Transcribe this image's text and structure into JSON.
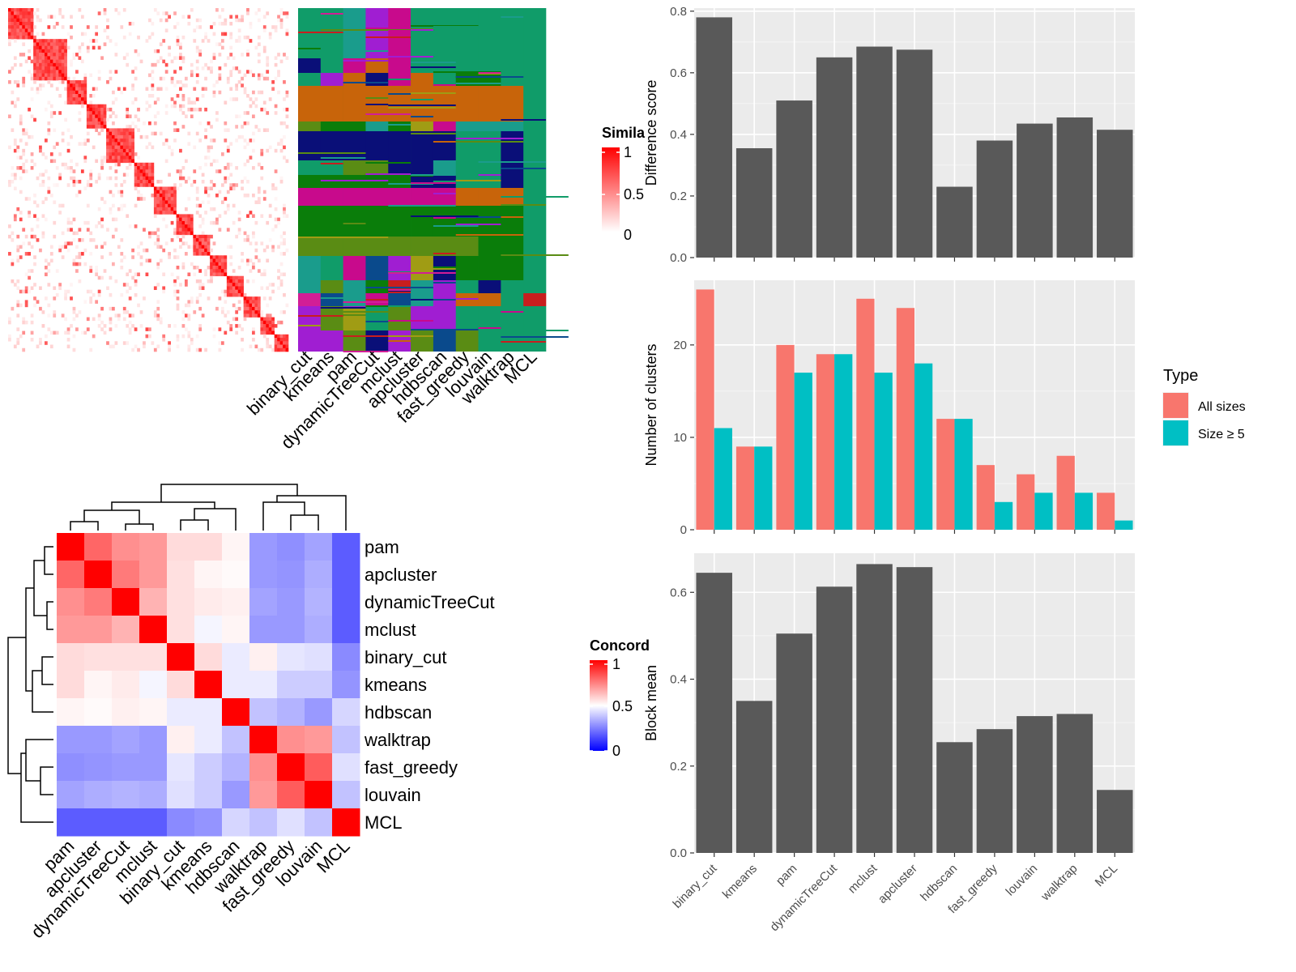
{
  "similarity_legend": {
    "title": "Simila",
    "ticks": [
      "1",
      "0.5",
      "0"
    ],
    "colors": [
      "#ffffff",
      "#ff0000"
    ]
  },
  "concordance_legend": {
    "title": "Concord",
    "ticks": [
      "1",
      "0.5",
      "0"
    ],
    "colors": [
      "#0000ff",
      "#ffffff",
      "#ff0000"
    ]
  },
  "membership_methods": [
    "binary_cut",
    "kmeans",
    "pam",
    "dynamicTreeCut",
    "mclust",
    "apcluster",
    "hdbscan",
    "fast_greedy",
    "louvain",
    "walktrap",
    "MCL"
  ],
  "membership_palette": [
    "#109c69",
    "#c8640a",
    "#0a0f78",
    "#c80a8c",
    "#0a7d0a",
    "#5a8c14",
    "#1a9c8c",
    "#a01ed2",
    "#0a4a8c",
    "#a09c14",
    "#c81e1e",
    "#d21e96"
  ],
  "chart_data": [
    {
      "type": "heatmap",
      "title": "",
      "row_labels": [
        "pam",
        "apcluster",
        "dynamicTreeCut",
        "mclust",
        "binary_cut",
        "kmeans",
        "hdbscan",
        "walktrap",
        "fast_greedy",
        "louvain",
        "MCL"
      ],
      "col_labels": [
        "pam",
        "apcluster",
        "dynamicTreeCut",
        "mclust",
        "binary_cut",
        "kmeans",
        "hdbscan",
        "walktrap",
        "fast_greedy",
        "louvain",
        "MCL"
      ],
      "values": [
        [
          1.0,
          0.8,
          0.72,
          0.7,
          0.57,
          0.57,
          0.52,
          0.3,
          0.28,
          0.32,
          0.18
        ],
        [
          0.8,
          1.0,
          0.76,
          0.7,
          0.56,
          0.52,
          0.51,
          0.3,
          0.29,
          0.34,
          0.18
        ],
        [
          0.72,
          0.76,
          1.0,
          0.65,
          0.56,
          0.54,
          0.53,
          0.32,
          0.3,
          0.35,
          0.18
        ],
        [
          0.7,
          0.7,
          0.65,
          1.0,
          0.56,
          0.48,
          0.52,
          0.3,
          0.3,
          0.34,
          0.18
        ],
        [
          0.57,
          0.56,
          0.56,
          0.56,
          1.0,
          0.57,
          0.46,
          0.53,
          0.45,
          0.44,
          0.27
        ],
        [
          0.57,
          0.52,
          0.54,
          0.48,
          0.57,
          1.0,
          0.46,
          0.46,
          0.4,
          0.4,
          0.29
        ],
        [
          0.52,
          0.51,
          0.53,
          0.52,
          0.46,
          0.46,
          1.0,
          0.38,
          0.35,
          0.3,
          0.42
        ],
        [
          0.3,
          0.3,
          0.32,
          0.3,
          0.53,
          0.46,
          0.38,
          1.0,
          0.72,
          0.7,
          0.38
        ],
        [
          0.28,
          0.29,
          0.3,
          0.3,
          0.45,
          0.4,
          0.35,
          0.72,
          1.0,
          0.82,
          0.44
        ],
        [
          0.32,
          0.34,
          0.35,
          0.34,
          0.44,
          0.4,
          0.3,
          0.7,
          0.82,
          1.0,
          0.38
        ],
        [
          0.18,
          0.18,
          0.18,
          0.18,
          0.27,
          0.29,
          0.42,
          0.38,
          0.44,
          0.38,
          1.0
        ]
      ],
      "legend_title": "Concord",
      "scale": [
        0,
        1
      ]
    },
    {
      "type": "bar",
      "categories": [
        "binary_cut",
        "kmeans",
        "pam",
        "dynamicTreeCut",
        "mclust",
        "apcluster",
        "hdbscan",
        "fast_greedy",
        "louvain",
        "walktrap",
        "MCL"
      ],
      "values": [
        0.78,
        0.355,
        0.51,
        0.65,
        0.685,
        0.675,
        0.23,
        0.38,
        0.435,
        0.455,
        0.415
      ],
      "title": "",
      "xlabel": "",
      "ylabel": "Difference score",
      "ylim": [
        0,
        0.81
      ],
      "yticks": [
        0.0,
        0.2,
        0.4,
        0.6,
        0.8
      ],
      "grid": true
    },
    {
      "type": "bar",
      "categories": [
        "binary_cut",
        "kmeans",
        "pam",
        "dynamicTreeCut",
        "mclust",
        "apcluster",
        "hdbscan",
        "fast_greedy",
        "louvain",
        "walktrap",
        "MCL"
      ],
      "series": [
        {
          "name": "All sizes",
          "values": [
            26,
            9,
            20,
            19,
            25,
            24,
            12,
            7,
            6,
            8,
            4
          ],
          "color": "#f8766d"
        },
        {
          "name": "Size ≥ 5",
          "values": [
            11,
            9,
            17,
            19,
            17,
            18,
            12,
            3,
            4,
            4,
            1
          ],
          "color": "#00bfc4"
        }
      ],
      "title": "",
      "xlabel": "",
      "ylabel": "Number of clusters",
      "ylim": [
        0,
        27
      ],
      "yticks": [
        0,
        10,
        20
      ],
      "grid": true,
      "legend_title": "Type",
      "legend_position": "right"
    },
    {
      "type": "bar",
      "categories": [
        "binary_cut",
        "kmeans",
        "pam",
        "dynamicTreeCut",
        "mclust",
        "apcluster",
        "hdbscan",
        "fast_greedy",
        "louvain",
        "walktrap",
        "MCL"
      ],
      "values": [
        0.645,
        0.35,
        0.505,
        0.613,
        0.665,
        0.658,
        0.255,
        0.285,
        0.315,
        0.32,
        0.145
      ],
      "title": "",
      "xlabel": "",
      "ylabel": "Block mean",
      "ylim": [
        0,
        0.69
      ],
      "yticks": [
        0.0,
        0.2,
        0.4,
        0.6
      ],
      "grid": true
    }
  ]
}
